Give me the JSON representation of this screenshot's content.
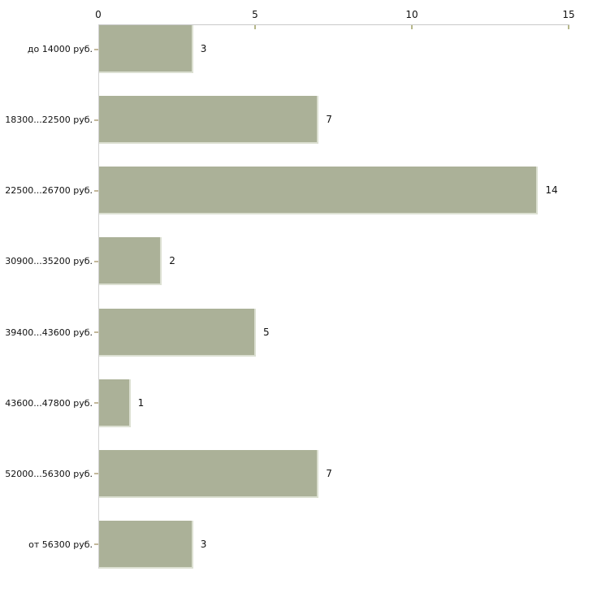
{
  "chart_data": {
    "type": "bar",
    "orientation": "horizontal",
    "title": "",
    "xlabel": "",
    "ylabel": "",
    "categories": [
      "до 14000 руб.",
      "18300...22500 руб.",
      "22500...26700 руб.",
      "30900...35200 руб.",
      "39400...43600 руб.",
      "43600...47800 руб.",
      "52000...56300 руб.",
      "от 56300 руб."
    ],
    "values": [
      3,
      7,
      14,
      2,
      5,
      1,
      7,
      3
    ],
    "value_labels_shown": true,
    "x_ticks": [
      0,
      5,
      10,
      15
    ],
    "xlim": [
      0,
      15
    ],
    "axis_position": "top",
    "grid": false,
    "legend": false,
    "colors": {
      "bar_fill": "#abb198",
      "bar_edge": "#dce0d2",
      "axis_line": "#c9c9c9",
      "x_tick_mark": "#b6b78a",
      "y_tick_mark": "#c3b89b",
      "text": "#111111",
      "background": "#ffffff"
    }
  }
}
